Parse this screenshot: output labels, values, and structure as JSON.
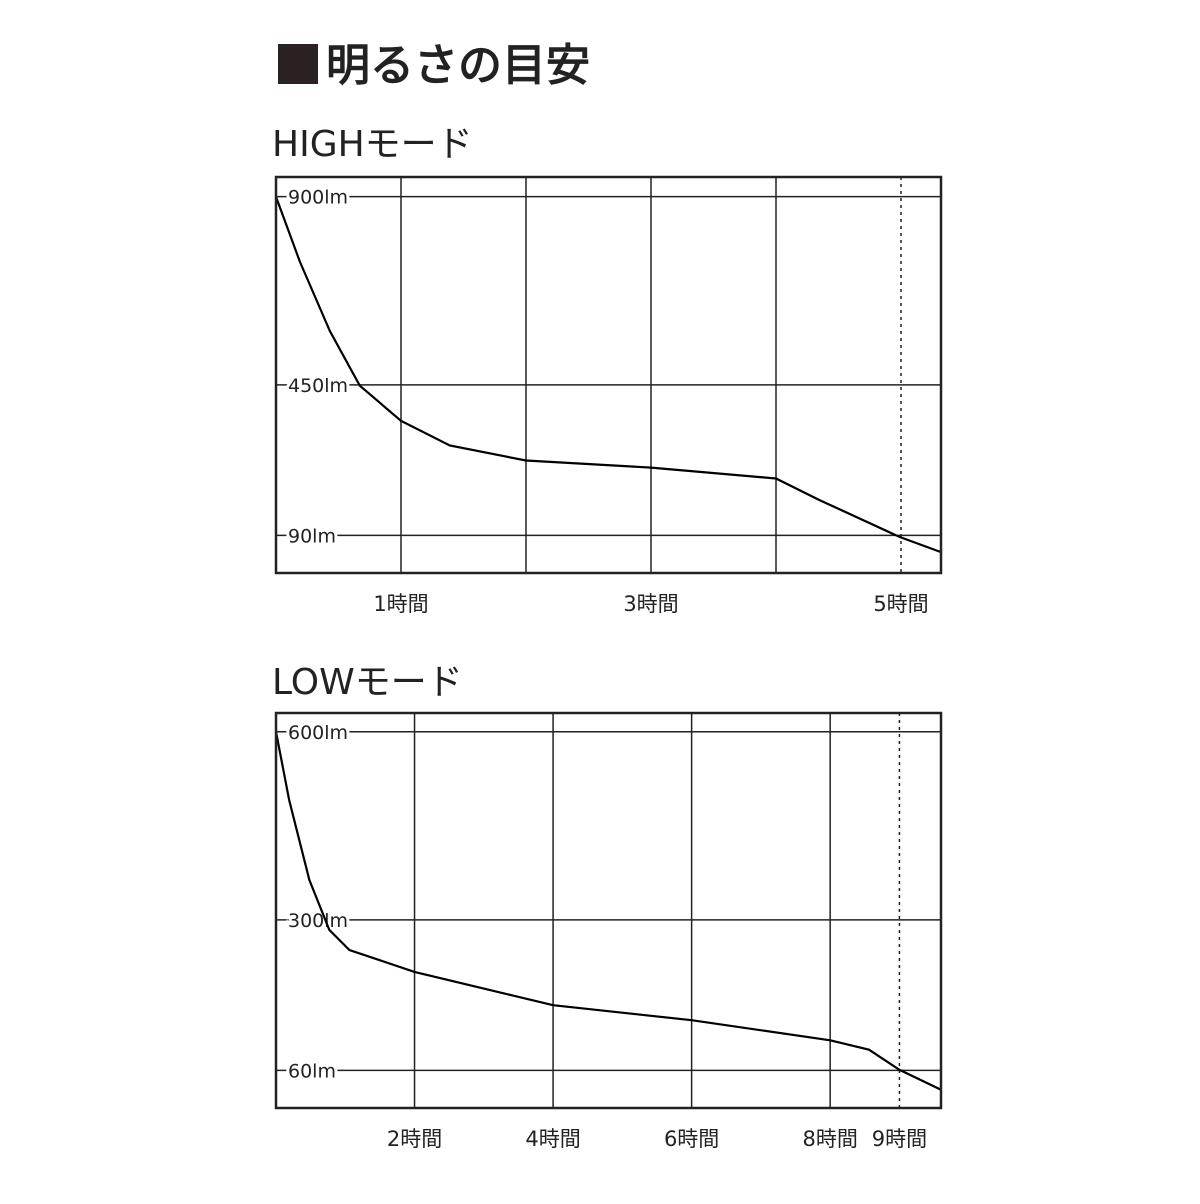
{
  "title": "明るさの目安",
  "chart_data": [
    {
      "type": "line",
      "title": "HIGHモード",
      "x": [
        0,
        0.19,
        0.43,
        0.67,
        1.0,
        1.39,
        2.0,
        3.0,
        4.0,
        4.35,
        4.99,
        5.32
      ],
      "values": [
        900,
        745,
        579,
        448,
        364,
        305,
        269,
        252,
        226,
        174,
        86,
        50
      ],
      "color": "#000000",
      "xlim": [
        0,
        5.32
      ],
      "ylim": [
        0,
        947
      ],
      "xticks": [
        {
          "value": 1,
          "label": "1時間"
        },
        {
          "value": 2,
          "label": null
        },
        {
          "value": 3,
          "label": "3時間"
        },
        {
          "value": 4,
          "label": null
        },
        {
          "value": 5,
          "label": "5時間",
          "style": "dotted"
        }
      ],
      "yticks": [
        {
          "value": 900,
          "label": "900lm"
        },
        {
          "value": 450,
          "label": "450lm"
        },
        {
          "value": 90,
          "label": "90lm"
        }
      ],
      "grid": true
    },
    {
      "type": "line",
      "title": "LOWモード",
      "x": [
        0,
        0.19,
        0.48,
        0.77,
        1.06,
        2.0,
        4.0,
        6.0,
        8.0,
        8.56,
        9.0,
        9.6
      ],
      "values": [
        600,
        491,
        364,
        284,
        252,
        217,
        164,
        140,
        108,
        93,
        61,
        29
      ],
      "color": "#000000",
      "xlim": [
        0,
        9.6
      ],
      "ylim": [
        0,
        630
      ],
      "xticks": [
        {
          "value": 2,
          "label": "2時間"
        },
        {
          "value": 4,
          "label": "4時間"
        },
        {
          "value": 6,
          "label": "6時間"
        },
        {
          "value": 8,
          "label": "8時間"
        },
        {
          "value": 9,
          "label": "9時間",
          "style": "dotted"
        }
      ],
      "yticks": [
        {
          "value": 600,
          "label": "600lm"
        },
        {
          "value": 300,
          "label": "300lm"
        },
        {
          "value": 60,
          "label": "60lm"
        }
      ],
      "grid": true
    }
  ]
}
